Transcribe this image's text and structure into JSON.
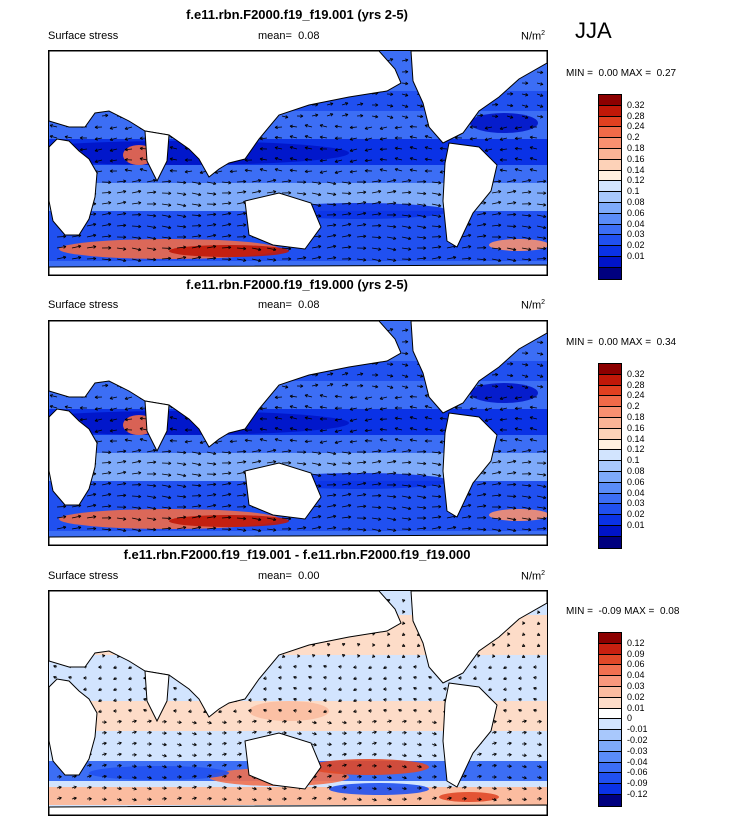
{
  "season": "JJA",
  "colors": {
    "stress_scale": [
      "#00007f",
      "#0014c8",
      "#0a32e6",
      "#2050f0",
      "#3c6ef5",
      "#5a8cf8",
      "#7eaafa",
      "#a8c8fc",
      "#d2e4fe",
      "#fff0e0",
      "#fdd2b8",
      "#fbb496",
      "#f89070",
      "#f06a48",
      "#e04020",
      "#c01808",
      "#8c0000"
    ],
    "diff_scale": [
      "#00007f",
      "#0a32e6",
      "#2050f0",
      "#3c6ef5",
      "#5a8cf8",
      "#7eaafa",
      "#a8c8fc",
      "#d2e4fe",
      "#ffffff",
      "#fddcc8",
      "#fbbca0",
      "#f8987c",
      "#f07050",
      "#e04828",
      "#c82010",
      "#8c0000"
    ],
    "land": "#ffffff",
    "coast": "#000000"
  },
  "panels": [
    {
      "title": "f.e11.rbn.F2000.f19_f19.001 (yrs 2-5)",
      "left_label": "Surface stress",
      "mean_label": "mean=",
      "mean_value": "0.08",
      "units": "N/m",
      "units_sup": "2",
      "min_label": "MIN =",
      "min_value": "0.00",
      "max_label": "MAX =",
      "max_value": "0.27",
      "scale": "stress",
      "levels": [
        "0.32",
        "0.28",
        "0.24",
        "0.2",
        "0.18",
        "0.16",
        "0.14",
        "0.12",
        "0.1",
        "0.08",
        "0.06",
        "0.04",
        "0.03",
        "0.02",
        "0.01"
      ]
    },
    {
      "title": "f.e11.rbn.F2000.f19_f19.000 (yrs 2-5)",
      "left_label": "Surface stress",
      "mean_label": "mean=",
      "mean_value": "0.08",
      "units": "N/m",
      "units_sup": "2",
      "min_label": "MIN =",
      "min_value": "0.00",
      "max_label": "MAX =",
      "max_value": "0.34",
      "scale": "stress",
      "levels": [
        "0.32",
        "0.28",
        "0.24",
        "0.2",
        "0.18",
        "0.16",
        "0.14",
        "0.12",
        "0.1",
        "0.08",
        "0.06",
        "0.04",
        "0.03",
        "0.02",
        "0.01"
      ]
    },
    {
      "title": "f.e11.rbn.F2000.f19_f19.001 - f.e11.rbn.F2000.f19_f19.000",
      "left_label": "Surface stress",
      "mean_label": "mean=",
      "mean_value": "0.00",
      "units": "N/m",
      "units_sup": "2",
      "min_label": "MIN =",
      "min_value": "-0.09",
      "max_label": "MAX =",
      "max_value": "0.08",
      "scale": "diff",
      "levels": [
        "0.12",
        "0.09",
        "0.06",
        "0.04",
        "0.03",
        "0.02",
        "0.01",
        "0",
        "-0.01",
        "-0.02",
        "-0.03",
        "-0.04",
        "-0.06",
        "-0.09",
        "-0.12"
      ]
    }
  ]
}
